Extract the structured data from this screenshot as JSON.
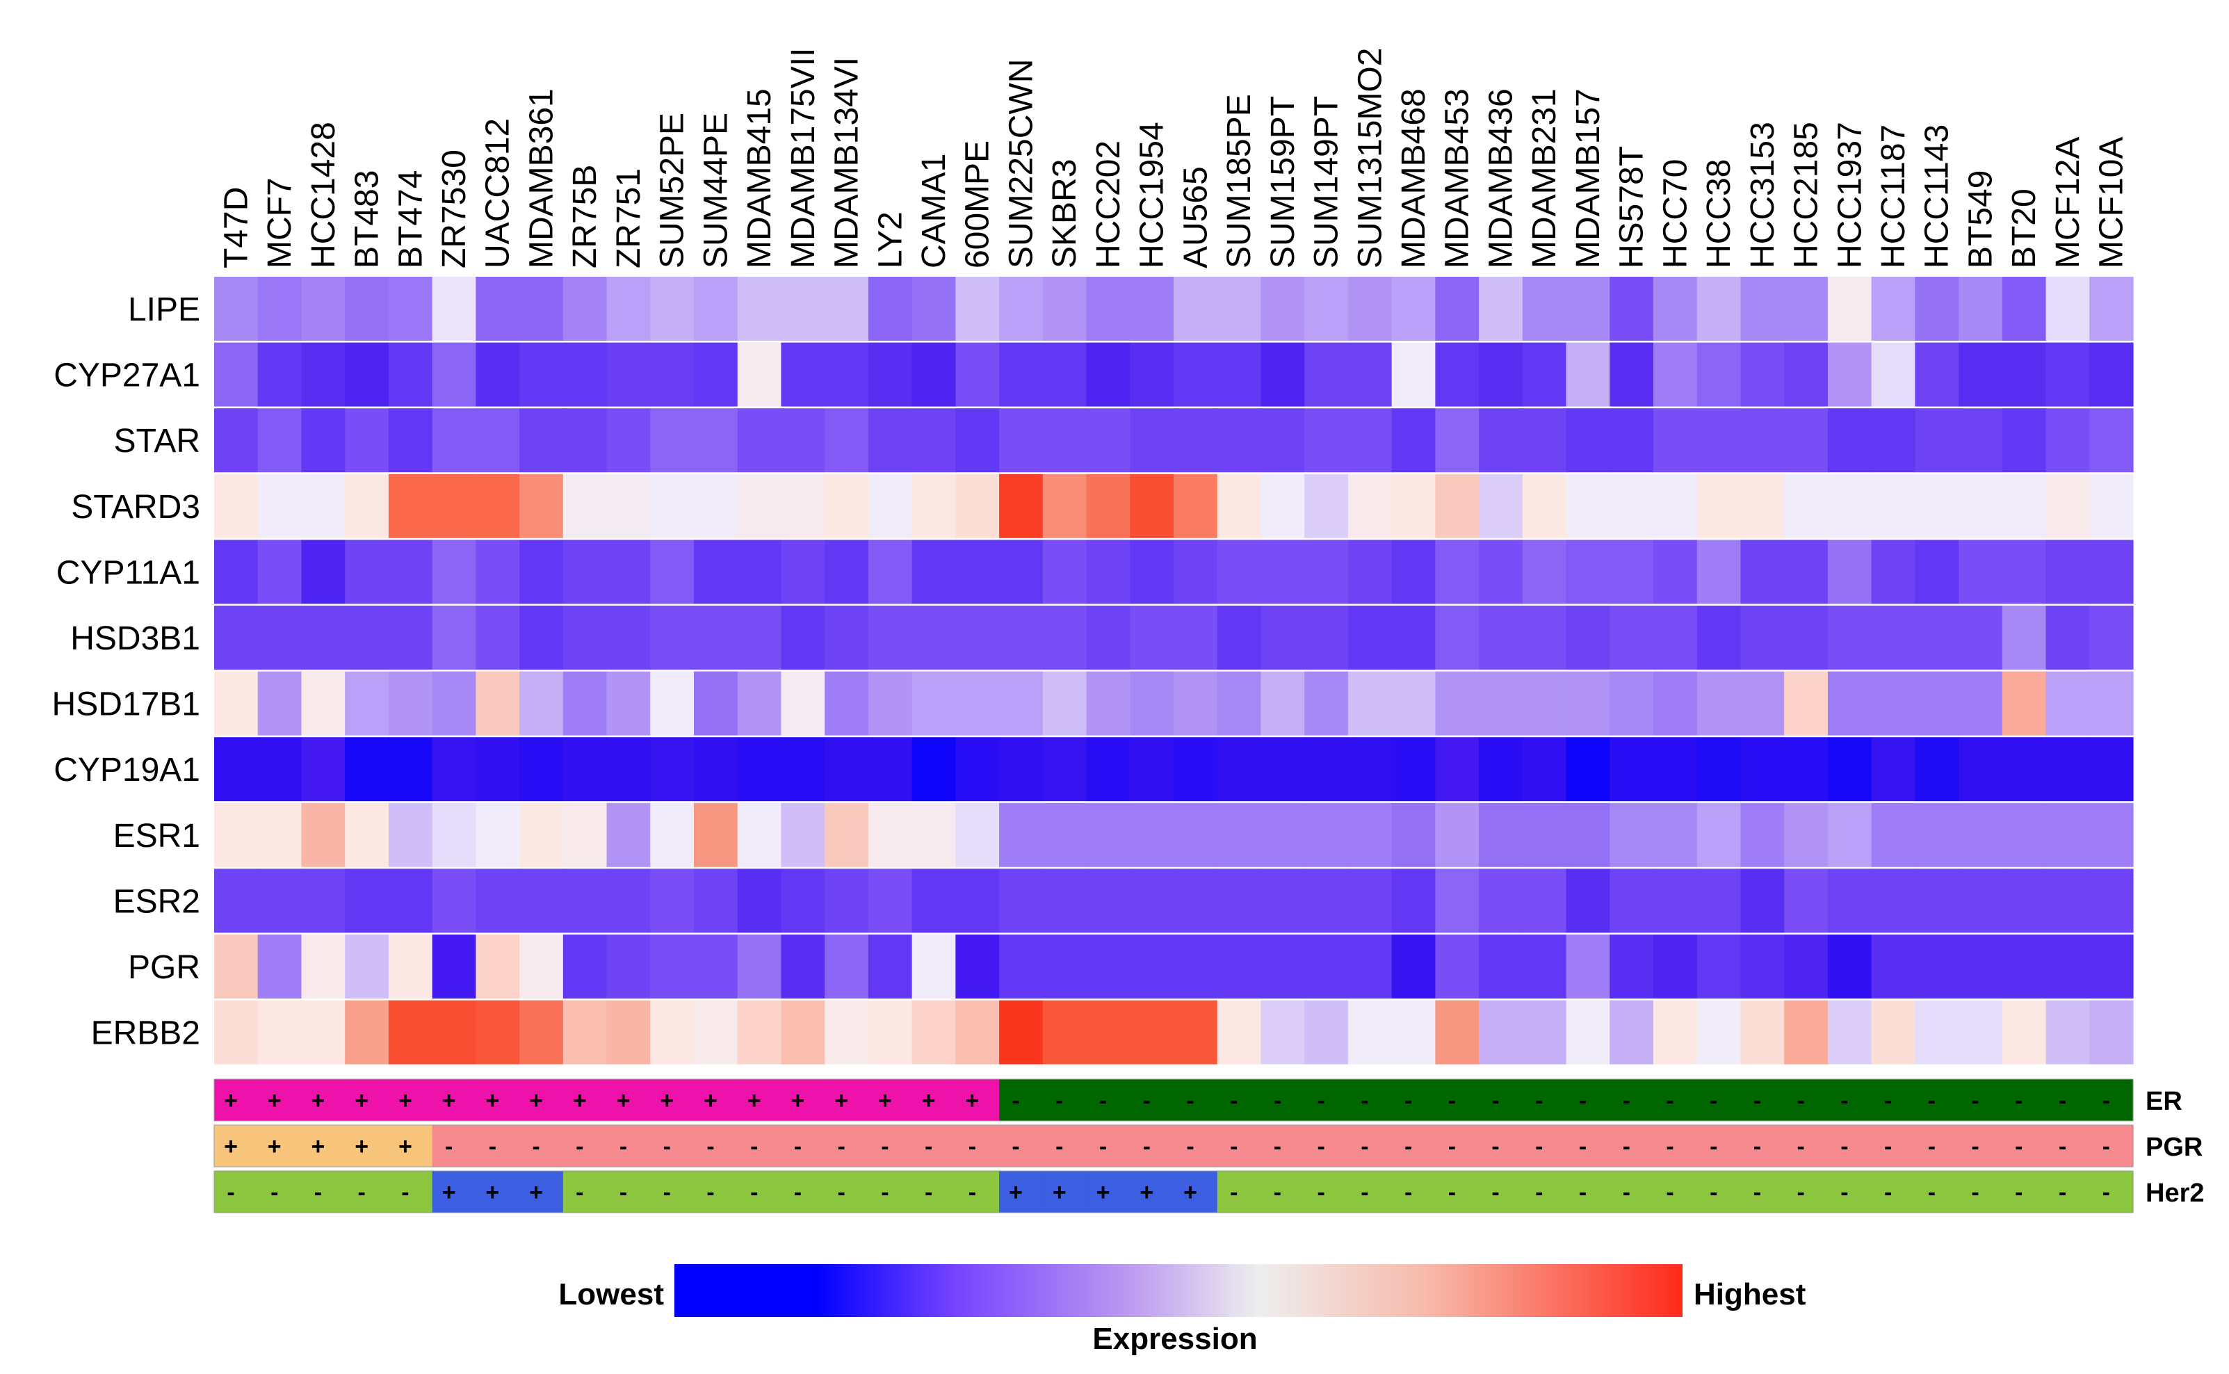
{
  "chart_data": {
    "type": "heatmap",
    "columns": [
      "T47D",
      "MCF7",
      "HCC1428",
      "BT483",
      "BT474",
      "ZR7530",
      "UACC812",
      "MDAMB361",
      "ZR75B",
      "ZR751",
      "SUM52PE",
      "SUM44PE",
      "MDAMB415",
      "MDAMB175VII",
      "MDAMB134VI",
      "LY2",
      "CAMA1",
      "600MPE",
      "SUM225CWN",
      "SKBR3",
      "HCC202",
      "HCC1954",
      "AU565",
      "SUM185PE",
      "SUM159PT",
      "SUM149PT",
      "SUM1315MO2",
      "MDAMB468",
      "MDAMB453",
      "MDAMB436",
      "MDAMB231",
      "MDAMB157",
      "HS578T",
      "HCC70",
      "HCC38",
      "HCC3153",
      "HCC2185",
      "HCC1937",
      "HCC1187",
      "HCC1143",
      "BT549",
      "BT20",
      "MCF12A",
      "MCF10A"
    ],
    "rows": [
      "LIPE",
      "CYP27A1",
      "STAR",
      "STARD3",
      "CYP11A1",
      "HSD3B1",
      "HSD17B1",
      "CYP19A1",
      "ESR1",
      "ESR2",
      "PGR",
      "ERBB2"
    ],
    "value_scale": "relative expression, 0 = lowest, 1 = highest",
    "values": [
      [
        0.36,
        0.33,
        0.35,
        0.32,
        0.33,
        0.49,
        0.3,
        0.3,
        0.35,
        0.4,
        0.42,
        0.4,
        0.44,
        0.44,
        0.44,
        0.3,
        0.32,
        0.44,
        0.4,
        0.38,
        0.34,
        0.34,
        0.42,
        0.42,
        0.38,
        0.4,
        0.38,
        0.4,
        0.3,
        0.44,
        0.36,
        0.36,
        0.26,
        0.36,
        0.42,
        0.36,
        0.36,
        0.53,
        0.4,
        0.32,
        0.36,
        0.28,
        0.48,
        0.4
      ],
      [
        0.3,
        0.22,
        0.2,
        0.18,
        0.22,
        0.3,
        0.2,
        0.22,
        0.22,
        0.23,
        0.23,
        0.22,
        0.53,
        0.22,
        0.22,
        0.2,
        0.18,
        0.26,
        0.22,
        0.22,
        0.18,
        0.2,
        0.22,
        0.22,
        0.18,
        0.24,
        0.24,
        0.5,
        0.22,
        0.2,
        0.22,
        0.42,
        0.2,
        0.34,
        0.3,
        0.26,
        0.24,
        0.38,
        0.48,
        0.24,
        0.2,
        0.2,
        0.22,
        0.2
      ],
      [
        0.24,
        0.28,
        0.22,
        0.26,
        0.22,
        0.28,
        0.28,
        0.24,
        0.24,
        0.26,
        0.3,
        0.3,
        0.26,
        0.26,
        0.28,
        0.24,
        0.24,
        0.22,
        0.26,
        0.26,
        0.26,
        0.24,
        0.24,
        0.24,
        0.24,
        0.26,
        0.26,
        0.22,
        0.3,
        0.24,
        0.24,
        0.22,
        0.22,
        0.26,
        0.26,
        0.26,
        0.26,
        0.22,
        0.22,
        0.24,
        0.24,
        0.22,
        0.26,
        0.28
      ],
      [
        0.56,
        0.5,
        0.5,
        0.56,
        0.82,
        0.82,
        0.82,
        0.74,
        0.52,
        0.52,
        0.5,
        0.5,
        0.53,
        0.53,
        0.56,
        0.5,
        0.56,
        0.58,
        0.92,
        0.74,
        0.8,
        0.88,
        0.78,
        0.56,
        0.5,
        0.46,
        0.54,
        0.56,
        0.62,
        0.46,
        0.56,
        0.5,
        0.5,
        0.5,
        0.56,
        0.56,
        0.5,
        0.5,
        0.5,
        0.5,
        0.5,
        0.5,
        0.54,
        0.5
      ],
      [
        0.22,
        0.26,
        0.18,
        0.24,
        0.24,
        0.3,
        0.26,
        0.22,
        0.24,
        0.24,
        0.28,
        0.22,
        0.22,
        0.24,
        0.22,
        0.28,
        0.22,
        0.22,
        0.22,
        0.26,
        0.24,
        0.22,
        0.24,
        0.26,
        0.26,
        0.26,
        0.24,
        0.22,
        0.28,
        0.26,
        0.3,
        0.28,
        0.28,
        0.26,
        0.34,
        0.24,
        0.24,
        0.32,
        0.24,
        0.22,
        0.26,
        0.26,
        0.24,
        0.24
      ],
      [
        0.24,
        0.24,
        0.24,
        0.24,
        0.24,
        0.3,
        0.26,
        0.22,
        0.24,
        0.24,
        0.26,
        0.26,
        0.26,
        0.22,
        0.24,
        0.26,
        0.26,
        0.26,
        0.26,
        0.26,
        0.24,
        0.26,
        0.26,
        0.22,
        0.24,
        0.24,
        0.22,
        0.22,
        0.28,
        0.26,
        0.26,
        0.24,
        0.26,
        0.26,
        0.22,
        0.24,
        0.24,
        0.26,
        0.26,
        0.26,
        0.26,
        0.36,
        0.24,
        0.26
      ],
      [
        0.56,
        0.38,
        0.54,
        0.4,
        0.38,
        0.36,
        0.62,
        0.42,
        0.34,
        0.38,
        0.5,
        0.32,
        0.38,
        0.52,
        0.34,
        0.38,
        0.4,
        0.4,
        0.4,
        0.44,
        0.38,
        0.36,
        0.38,
        0.36,
        0.42,
        0.36,
        0.44,
        0.44,
        0.38,
        0.38,
        0.38,
        0.38,
        0.36,
        0.34,
        0.38,
        0.38,
        0.6,
        0.34,
        0.34,
        0.34,
        0.34,
        0.68,
        0.4,
        0.4
      ],
      [
        0.12,
        0.12,
        0.16,
        0.06,
        0.06,
        0.14,
        0.12,
        0.1,
        0.12,
        0.12,
        0.14,
        0.12,
        0.1,
        0.1,
        0.12,
        0.12,
        0.04,
        0.1,
        0.12,
        0.14,
        0.1,
        0.12,
        0.1,
        0.12,
        0.12,
        0.12,
        0.12,
        0.1,
        0.16,
        0.1,
        0.12,
        0.04,
        0.1,
        0.1,
        0.08,
        0.1,
        0.1,
        0.06,
        0.14,
        0.08,
        0.12,
        0.12,
        0.12,
        0.12
      ],
      [
        0.56,
        0.56,
        0.66,
        0.56,
        0.44,
        0.48,
        0.5,
        0.56,
        0.54,
        0.38,
        0.5,
        0.72,
        0.5,
        0.44,
        0.62,
        0.53,
        0.53,
        0.48,
        0.34,
        0.34,
        0.34,
        0.34,
        0.34,
        0.34,
        0.34,
        0.34,
        0.34,
        0.32,
        0.38,
        0.32,
        0.32,
        0.32,
        0.36,
        0.36,
        0.4,
        0.34,
        0.38,
        0.4,
        0.34,
        0.34,
        0.34,
        0.34,
        0.34,
        0.34
      ],
      [
        0.24,
        0.24,
        0.24,
        0.22,
        0.22,
        0.26,
        0.24,
        0.24,
        0.24,
        0.24,
        0.26,
        0.24,
        0.2,
        0.22,
        0.24,
        0.26,
        0.22,
        0.22,
        0.24,
        0.24,
        0.24,
        0.24,
        0.24,
        0.24,
        0.24,
        0.24,
        0.24,
        0.22,
        0.3,
        0.26,
        0.26,
        0.2,
        0.24,
        0.24,
        0.24,
        0.2,
        0.26,
        0.24,
        0.24,
        0.24,
        0.24,
        0.24,
        0.24,
        0.24
      ],
      [
        0.62,
        0.34,
        0.54,
        0.44,
        0.56,
        0.16,
        0.6,
        0.53,
        0.22,
        0.24,
        0.26,
        0.26,
        0.32,
        0.2,
        0.3,
        0.22,
        0.5,
        0.16,
        0.22,
        0.22,
        0.22,
        0.22,
        0.22,
        0.22,
        0.22,
        0.22,
        0.22,
        0.14,
        0.26,
        0.22,
        0.22,
        0.34,
        0.2,
        0.18,
        0.22,
        0.2,
        0.18,
        0.12,
        0.2,
        0.2,
        0.2,
        0.2,
        0.2,
        0.2
      ],
      [
        0.58,
        0.56,
        0.56,
        0.7,
        0.88,
        0.88,
        0.86,
        0.8,
        0.64,
        0.66,
        0.56,
        0.54,
        0.6,
        0.64,
        0.54,
        0.56,
        0.6,
        0.64,
        0.94,
        0.86,
        0.86,
        0.86,
        0.86,
        0.56,
        0.46,
        0.44,
        0.5,
        0.5,
        0.72,
        0.42,
        0.42,
        0.5,
        0.42,
        0.56,
        0.5,
        0.58,
        0.68,
        0.46,
        0.58,
        0.48,
        0.48,
        0.56,
        0.44,
        0.42
      ]
    ],
    "annotations": [
      {
        "name": "ER",
        "symbols": [
          "+",
          "+",
          "+",
          "+",
          "+",
          "+",
          "+",
          "+",
          "+",
          "+",
          "+",
          "+",
          "+",
          "+",
          "+",
          "+",
          "+",
          "+",
          "-",
          "-",
          "-",
          "-",
          "-",
          "-",
          "-",
          "-",
          "-",
          "-",
          "-",
          "-",
          "-",
          "-",
          "-",
          "-",
          "-",
          "-",
          "-",
          "-",
          "-",
          "-",
          "-",
          "-",
          "-",
          "-"
        ],
        "positive_color": "#ee11aa",
        "negative_color": "#006600"
      },
      {
        "name": "PGR",
        "symbols": [
          "+",
          "+",
          "+",
          "+",
          "+",
          "-",
          "-",
          "-",
          "-",
          "-",
          "-",
          "-",
          "-",
          "-",
          "-",
          "-",
          "-",
          "-",
          "-",
          "-",
          "-",
          "-",
          "-",
          "-",
          "-",
          "-",
          "-",
          "-",
          "-",
          "-",
          "-",
          "-",
          "-",
          "-",
          "-",
          "-",
          "-",
          "-",
          "-",
          "-",
          "-",
          "-",
          "-",
          "-"
        ],
        "positive_color": "#f6c47a",
        "negative_color": "#f68a8e"
      },
      {
        "name": "Her2",
        "symbols": [
          "-",
          "-",
          "-",
          "-",
          "-",
          "+",
          "+",
          "+",
          "-",
          "-",
          "-",
          "-",
          "-",
          "-",
          "-",
          "-",
          "-",
          "-",
          "+",
          "+",
          "+",
          "+",
          "+",
          "-",
          "-",
          "-",
          "-",
          "-",
          "-",
          "-",
          "-",
          "-",
          "-",
          "-",
          "-",
          "-",
          "-",
          "-",
          "-",
          "-",
          "-",
          "-",
          "-",
          "-"
        ],
        "positive_color": "#3b5fe0",
        "negative_color": "#8cc63f"
      }
    ],
    "legend": {
      "low_label": "Lowest",
      "high_label": "Highest",
      "title": "Expression",
      "colors": [
        "#0000ff",
        "#8855ff",
        "#eeeeee",
        "#ff3322"
      ]
    }
  }
}
